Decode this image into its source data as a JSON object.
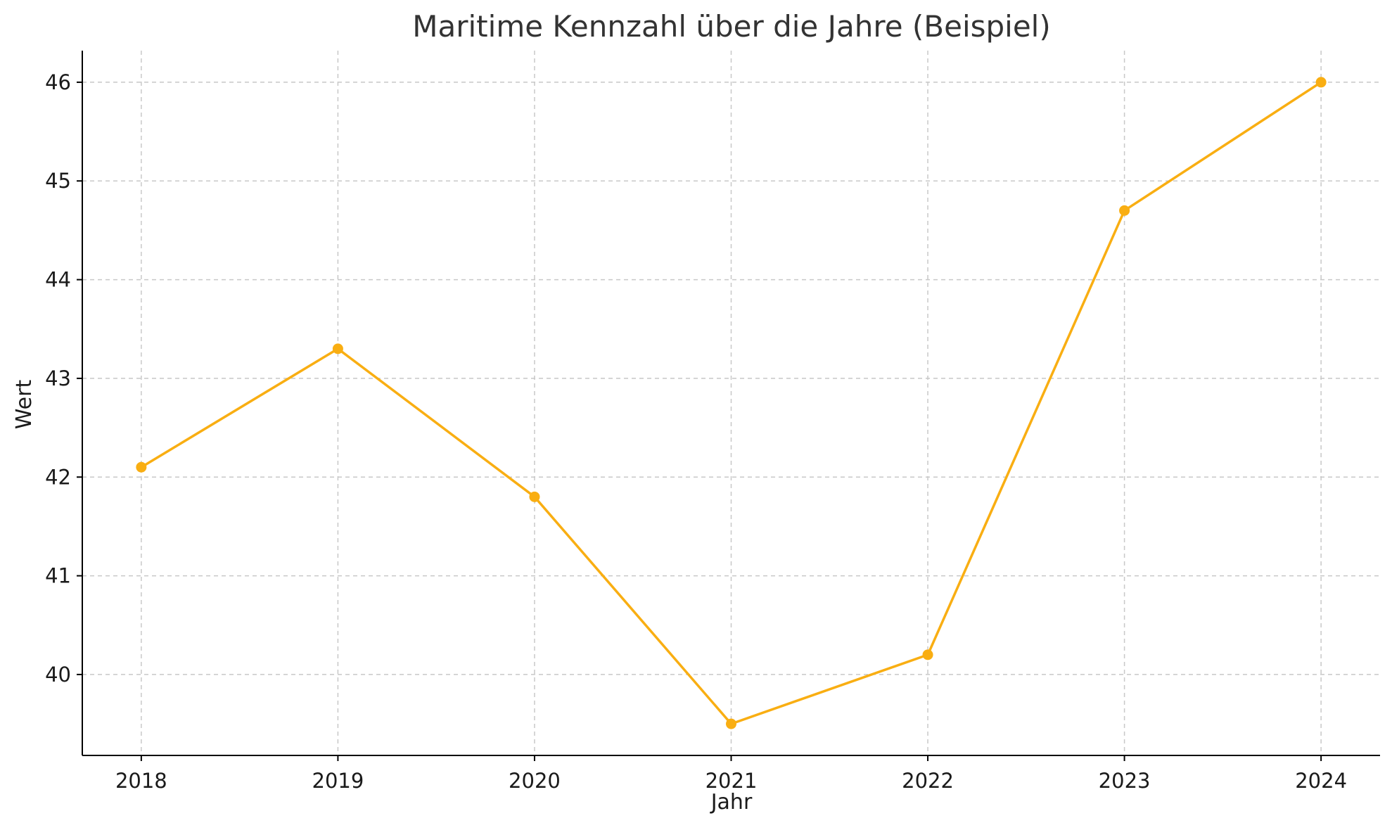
{
  "chart_data": {
    "type": "line",
    "title": "Maritime Kennzahl über die Jahre (Beispiel)",
    "xlabel": "Jahr",
    "ylabel": "Wert",
    "x": [
      "2018",
      "2019",
      "2020",
      "2021",
      "2022",
      "2023",
      "2024"
    ],
    "series": [
      {
        "values": [
          42.1,
          43.3,
          41.8,
          39.5,
          40.2,
          44.7,
          46.0
        ],
        "color": "#F9AE12",
        "marker": "circle"
      }
    ],
    "yticks": [
      40,
      41,
      42,
      43,
      44,
      45,
      46
    ],
    "ylim": [
      39.18,
      46.32
    ],
    "xlim": [
      2017.7,
      2024.3
    ],
    "grid": true,
    "legend": "none"
  }
}
